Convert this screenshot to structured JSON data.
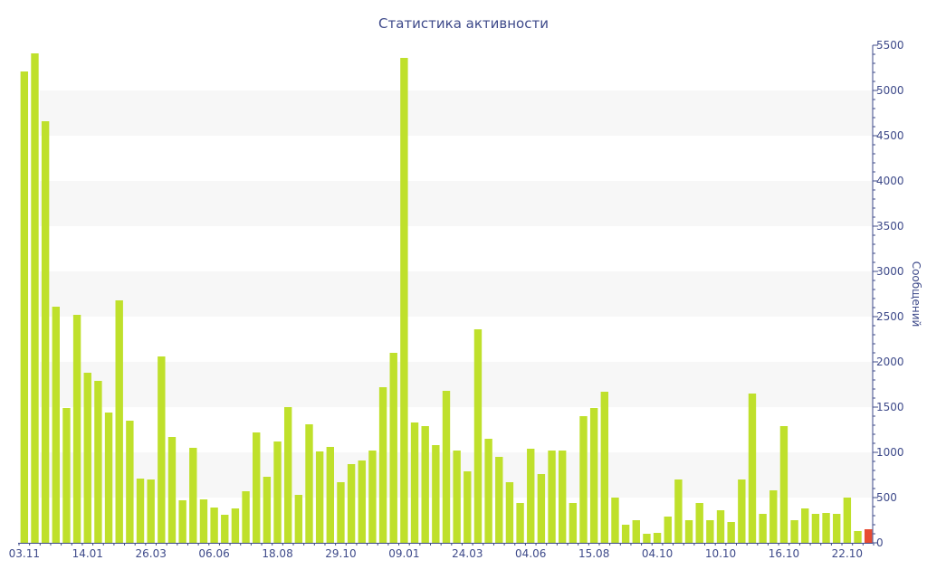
{
  "chart_data": {
    "type": "bar",
    "title": "Статистика активности",
    "xlabel": "",
    "ylabel": "Сообщений",
    "ylim": [
      0,
      5500
    ],
    "y_ticks": [
      0,
      500,
      1000,
      1500,
      2000,
      2500,
      3000,
      3500,
      4000,
      4500,
      5000,
      5500
    ],
    "y_axis_side": "right",
    "x_tick_labels": [
      {
        "index": 0,
        "label": "03.11"
      },
      {
        "index": 6,
        "label": "14.01"
      },
      {
        "index": 12,
        "label": "26.03"
      },
      {
        "index": 18,
        "label": "06.06"
      },
      {
        "index": 24,
        "label": "18.08"
      },
      {
        "index": 30,
        "label": "29.10"
      },
      {
        "index": 36,
        "label": "09.01"
      },
      {
        "index": 42,
        "label": "24.03"
      },
      {
        "index": 48,
        "label": "04.06"
      },
      {
        "index": 54,
        "label": "15.08"
      },
      {
        "index": 60,
        "label": "04.10"
      },
      {
        "index": 66,
        "label": "10.10"
      },
      {
        "index": 72,
        "label": "16.10"
      },
      {
        "index": 78,
        "label": "22.10"
      }
    ],
    "grid": true,
    "colors": {
      "bar": "#bfe02b",
      "highlight_bar": "#e84c32",
      "axis": "#3e4a8a",
      "band": "#f7f7f7"
    },
    "values": [
      5210,
      5410,
      4660,
      2610,
      1490,
      2520,
      1880,
      1790,
      1440,
      2680,
      1350,
      710,
      700,
      2060,
      1170,
      470,
      1050,
      480,
      390,
      310,
      380,
      570,
      1220,
      730,
      1120,
      1500,
      530,
      1310,
      1010,
      1060,
      670,
      870,
      910,
      1020,
      1720,
      2100,
      5360,
      1330,
      1290,
      1080,
      1680,
      1020,
      790,
      2360,
      1150,
      950,
      670,
      440,
      1040,
      760,
      1020,
      1020,
      440,
      1400,
      1490,
      1670,
      500,
      200,
      250,
      100,
      110,
      290,
      700,
      250,
      440,
      250,
      360,
      230,
      700,
      1650,
      320,
      580,
      1290,
      250,
      380,
      320,
      330,
      320,
      500,
      130,
      150
    ],
    "highlight_index": 80
  }
}
